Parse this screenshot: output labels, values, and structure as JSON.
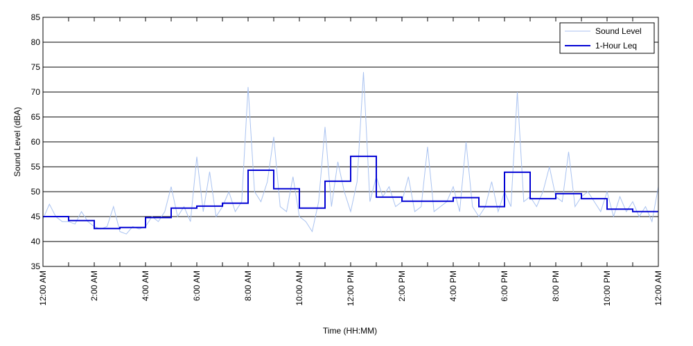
{
  "chart_data": {
    "type": "line",
    "xlabel": "Time (HH:MM)",
    "ylabel": "Sound Level (dBA)",
    "ylim": [
      35,
      85
    ],
    "xlim": [
      0,
      24
    ],
    "y_ticks": [
      35,
      40,
      45,
      50,
      55,
      60,
      65,
      70,
      75,
      80,
      85
    ],
    "x_tick_labels": [
      "12:00 AM",
      "2:00 AM",
      "4:00 AM",
      "6:00 AM",
      "8:00 AM",
      "10:00 AM",
      "12:00 PM",
      "2:00 PM",
      "4:00 PM",
      "6:00 PM",
      "8:00 PM",
      "10:00 PM",
      "12:00 AM"
    ],
    "x_ticks_hours": [
      0,
      2,
      4,
      6,
      8,
      10,
      12,
      14,
      16,
      18,
      20,
      22,
      24
    ],
    "grid": "horizontal",
    "legend": "top-right",
    "colors": {
      "sound_level": "#a9c2f0",
      "leq": "#0000d4",
      "grid": "#000000"
    },
    "series": [
      {
        "name": "Sound Level",
        "x_hours": [
          0,
          0.25,
          0.5,
          0.75,
          1,
          1.25,
          1.5,
          1.75,
          2,
          2.25,
          2.5,
          2.75,
          3,
          3.25,
          3.5,
          3.75,
          4,
          4.25,
          4.5,
          4.75,
          5,
          5.25,
          5.5,
          5.75,
          6,
          6.25,
          6.5,
          6.75,
          7,
          7.25,
          7.5,
          7.75,
          8,
          8.25,
          8.5,
          8.75,
          9,
          9.25,
          9.5,
          9.75,
          10,
          10.25,
          10.5,
          10.75,
          11,
          11.25,
          11.5,
          11.75,
          12,
          12.25,
          12.5,
          12.75,
          13,
          13.25,
          13.5,
          13.75,
          14,
          14.25,
          14.5,
          14.75,
          15,
          15.25,
          15.5,
          15.75,
          16,
          16.25,
          16.5,
          16.75,
          17,
          17.25,
          17.5,
          17.75,
          18,
          18.25,
          18.5,
          18.75,
          19,
          19.25,
          19.5,
          19.75,
          20,
          20.25,
          20.5,
          20.75,
          21,
          21.25,
          21.5,
          21.75,
          22,
          22.25,
          22.5,
          22.75,
          23,
          23.25,
          23.5,
          23.75,
          24
        ],
        "values": [
          44.5,
          47.5,
          45,
          44,
          44,
          43.5,
          46,
          44,
          43,
          42.5,
          43,
          47,
          42,
          41.5,
          43,
          42.5,
          43,
          45,
          44,
          46,
          51,
          45,
          47,
          44,
          57,
          46,
          54,
          45,
          47,
          50,
          46,
          48,
          71,
          50,
          48,
          52,
          61,
          47,
          46,
          53,
          45,
          44,
          42,
          48,
          63,
          47,
          56,
          50,
          46,
          52,
          74,
          48,
          53,
          49,
          51,
          47,
          48,
          53,
          46,
          47,
          59,
          46,
          47,
          48,
          51,
          46,
          60,
          47,
          45,
          47,
          52,
          46,
          50,
          47,
          70,
          48,
          49,
          47,
          50,
          55,
          49,
          48,
          58,
          47,
          49,
          50,
          48,
          46,
          50,
          45,
          49,
          46,
          48,
          45,
          47,
          44,
          51
        ]
      },
      {
        "name": "1-Hour Leq",
        "step_hours": [
          0,
          1,
          2,
          3,
          4,
          5,
          6,
          7,
          8,
          9,
          10,
          11,
          12,
          13,
          14,
          15,
          16,
          17,
          18,
          19,
          20,
          21,
          22,
          23
        ],
        "values": [
          45,
          44.2,
          42.6,
          42.8,
          44.8,
          46.7,
          47.1,
          47.7,
          54.3,
          50.6,
          46.7,
          52.1,
          57.1,
          48.9,
          48.1,
          48.1,
          48.8,
          47.0,
          53.9,
          48.6,
          49.6,
          48.6,
          46.5,
          46.0
        ]
      }
    ]
  }
}
